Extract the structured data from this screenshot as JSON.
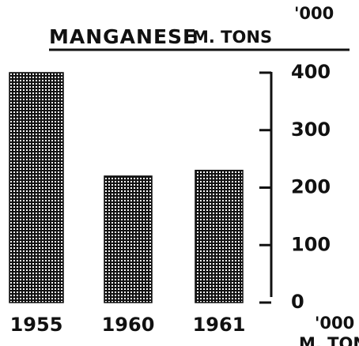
{
  "chart_data": {
    "type": "bar",
    "title": "MANGANESE",
    "y_label": [
      "'000",
      "M. TONS"
    ],
    "annotations": [
      "'000",
      "M. TONS"
    ],
    "categories": [
      "1955",
      "1960",
      "1961"
    ],
    "values": [
      400,
      220,
      230
    ],
    "color": "#111111",
    "ylim": [
      0,
      400
    ],
    "yticks": [
      0,
      100,
      200,
      300,
      400
    ],
    "grid": false
  }
}
